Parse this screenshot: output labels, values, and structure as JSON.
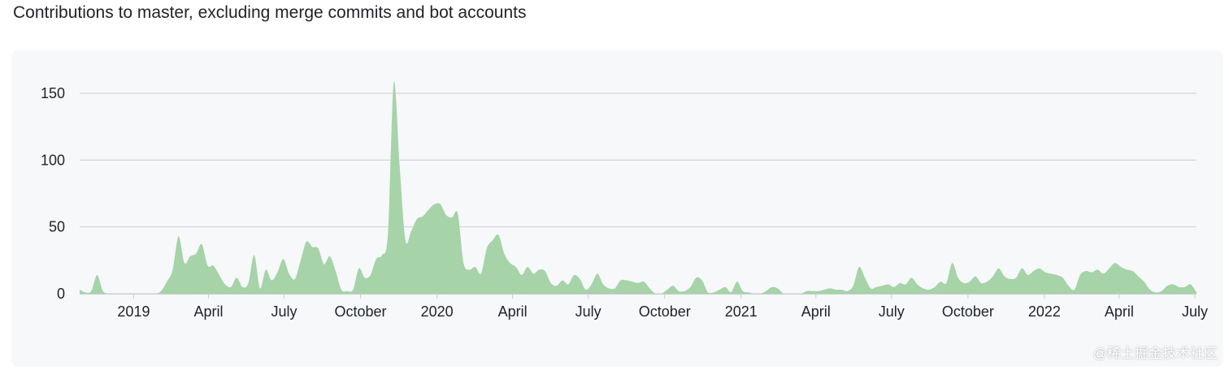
{
  "page": {
    "title": "Contributions to master, excluding merge commits and bot accounts",
    "watermark": "@稀土掘金技术社区"
  },
  "chart_data": {
    "type": "area",
    "title": "Contributions to master, excluding merge commits and bot accounts",
    "xlabel": "",
    "ylabel": "",
    "ylim": [
      0,
      170
    ],
    "yticks": [
      0,
      50,
      100,
      150
    ],
    "xlim": [
      "2018-10-28",
      "2022-07-03"
    ],
    "xticks": [
      {
        "date": "2019-01-01",
        "label": "2019"
      },
      {
        "date": "2019-04-01",
        "label": "April"
      },
      {
        "date": "2019-07-01",
        "label": "July"
      },
      {
        "date": "2019-10-01",
        "label": "October"
      },
      {
        "date": "2020-01-01",
        "label": "2020"
      },
      {
        "date": "2020-04-01",
        "label": "April"
      },
      {
        "date": "2020-07-01",
        "label": "July"
      },
      {
        "date": "2020-10-01",
        "label": "October"
      },
      {
        "date": "2021-01-01",
        "label": "2021"
      },
      {
        "date": "2021-04-01",
        "label": "April"
      },
      {
        "date": "2021-07-01",
        "label": "July"
      },
      {
        "date": "2021-10-01",
        "label": "October"
      },
      {
        "date": "2022-01-01",
        "label": "2022"
      },
      {
        "date": "2022-04-01",
        "label": "April"
      },
      {
        "date": "2022-07-01",
        "label": "July"
      }
    ],
    "grid": true,
    "fill_color": "#a6d3a8",
    "grid_color": "#c9ced4",
    "series": [
      {
        "points": [
          [
            "2018-10-28",
            3
          ],
          [
            "2018-11-04",
            1
          ],
          [
            "2018-11-11",
            2
          ],
          [
            "2018-11-18",
            14
          ],
          [
            "2018-11-25",
            2
          ],
          [
            "2018-12-02",
            0
          ],
          [
            "2018-12-09",
            0
          ],
          [
            "2018-12-16",
            0
          ],
          [
            "2018-12-23",
            0
          ],
          [
            "2018-12-30",
            0
          ],
          [
            "2019-01-06",
            0
          ],
          [
            "2019-01-13",
            0
          ],
          [
            "2019-01-20",
            0
          ],
          [
            "2019-01-27",
            0
          ],
          [
            "2019-02-03",
            2
          ],
          [
            "2019-02-10",
            9
          ],
          [
            "2019-02-17",
            18
          ],
          [
            "2019-02-24",
            43
          ],
          [
            "2019-03-03",
            23
          ],
          [
            "2019-03-10",
            28
          ],
          [
            "2019-03-17",
            30
          ],
          [
            "2019-03-24",
            37
          ],
          [
            "2019-03-31",
            21
          ],
          [
            "2019-04-07",
            21
          ],
          [
            "2019-04-14",
            14
          ],
          [
            "2019-04-21",
            7
          ],
          [
            "2019-04-28",
            5
          ],
          [
            "2019-05-05",
            12
          ],
          [
            "2019-05-12",
            5
          ],
          [
            "2019-05-19",
            8
          ],
          [
            "2019-05-26",
            29
          ],
          [
            "2019-06-02",
            4
          ],
          [
            "2019-06-09",
            18
          ],
          [
            "2019-06-16",
            10
          ],
          [
            "2019-06-23",
            16
          ],
          [
            "2019-06-30",
            26
          ],
          [
            "2019-07-07",
            15
          ],
          [
            "2019-07-14",
            11
          ],
          [
            "2019-07-21",
            25
          ],
          [
            "2019-07-28",
            39
          ],
          [
            "2019-08-04",
            35
          ],
          [
            "2019-08-11",
            34
          ],
          [
            "2019-08-18",
            22
          ],
          [
            "2019-08-25",
            28
          ],
          [
            "2019-09-01",
            17
          ],
          [
            "2019-09-08",
            3
          ],
          [
            "2019-09-15",
            2
          ],
          [
            "2019-09-22",
            3
          ],
          [
            "2019-09-29",
            19
          ],
          [
            "2019-10-06",
            12
          ],
          [
            "2019-10-13",
            14
          ],
          [
            "2019-10-20",
            26
          ],
          [
            "2019-10-27",
            29
          ],
          [
            "2019-11-03",
            45
          ],
          [
            "2019-11-10",
            158
          ],
          [
            "2019-11-17",
            96
          ],
          [
            "2019-11-24",
            40
          ],
          [
            "2019-12-01",
            47
          ],
          [
            "2019-12-08",
            56
          ],
          [
            "2019-12-15",
            58
          ],
          [
            "2019-12-22",
            63
          ],
          [
            "2019-12-29",
            67
          ],
          [
            "2020-01-05",
            67
          ],
          [
            "2020-01-12",
            59
          ],
          [
            "2020-01-19",
            57
          ],
          [
            "2020-01-26",
            60
          ],
          [
            "2020-02-02",
            23
          ],
          [
            "2020-02-09",
            18
          ],
          [
            "2020-02-16",
            20
          ],
          [
            "2020-02-23",
            15
          ],
          [
            "2020-03-01",
            34
          ],
          [
            "2020-03-08",
            40
          ],
          [
            "2020-03-15",
            44
          ],
          [
            "2020-03-22",
            30
          ],
          [
            "2020-03-29",
            23
          ],
          [
            "2020-04-05",
            20
          ],
          [
            "2020-04-12",
            14
          ],
          [
            "2020-04-19",
            20
          ],
          [
            "2020-04-26",
            15
          ],
          [
            "2020-05-03",
            18
          ],
          [
            "2020-05-10",
            17
          ],
          [
            "2020-05-17",
            8
          ],
          [
            "2020-05-24",
            6
          ],
          [
            "2020-05-31",
            10
          ],
          [
            "2020-06-07",
            7
          ],
          [
            "2020-06-14",
            14
          ],
          [
            "2020-06-21",
            11
          ],
          [
            "2020-06-28",
            3
          ],
          [
            "2020-07-05",
            7
          ],
          [
            "2020-07-12",
            15
          ],
          [
            "2020-07-19",
            7
          ],
          [
            "2020-07-26",
            4
          ],
          [
            "2020-08-02",
            4
          ],
          [
            "2020-08-09",
            10
          ],
          [
            "2020-08-16",
            10
          ],
          [
            "2020-08-23",
            9
          ],
          [
            "2020-08-30",
            8
          ],
          [
            "2020-09-06",
            9
          ],
          [
            "2020-09-13",
            4
          ],
          [
            "2020-09-20",
            0
          ],
          [
            "2020-09-27",
            0
          ],
          [
            "2020-10-04",
            3
          ],
          [
            "2020-10-11",
            6
          ],
          [
            "2020-10-18",
            2
          ],
          [
            "2020-10-25",
            2
          ],
          [
            "2020-11-01",
            5
          ],
          [
            "2020-11-08",
            12
          ],
          [
            "2020-11-15",
            10
          ],
          [
            "2020-11-22",
            1
          ],
          [
            "2020-11-29",
            1
          ],
          [
            "2020-12-06",
            3
          ],
          [
            "2020-12-13",
            5
          ],
          [
            "2020-12-20",
            1
          ],
          [
            "2020-12-27",
            9
          ],
          [
            "2021-01-03",
            2
          ],
          [
            "2021-01-10",
            1
          ],
          [
            "2021-01-17",
            0
          ],
          [
            "2021-01-24",
            0
          ],
          [
            "2021-01-31",
            2
          ],
          [
            "2021-02-07",
            5
          ],
          [
            "2021-02-14",
            4
          ],
          [
            "2021-02-21",
            0
          ],
          [
            "2021-02-28",
            0
          ],
          [
            "2021-03-07",
            0
          ],
          [
            "2021-03-14",
            0
          ],
          [
            "2021-03-21",
            2
          ],
          [
            "2021-03-28",
            2
          ],
          [
            "2021-04-04",
            2
          ],
          [
            "2021-04-11",
            3
          ],
          [
            "2021-04-18",
            4
          ],
          [
            "2021-04-25",
            3
          ],
          [
            "2021-05-02",
            3
          ],
          [
            "2021-05-09",
            2
          ],
          [
            "2021-05-16",
            6
          ],
          [
            "2021-05-23",
            20
          ],
          [
            "2021-05-30",
            12
          ],
          [
            "2021-06-06",
            4
          ],
          [
            "2021-06-13",
            5
          ],
          [
            "2021-06-20",
            6
          ],
          [
            "2021-06-27",
            7
          ],
          [
            "2021-07-04",
            5
          ],
          [
            "2021-07-11",
            8
          ],
          [
            "2021-07-18",
            7
          ],
          [
            "2021-07-25",
            12
          ],
          [
            "2021-08-01",
            7
          ],
          [
            "2021-08-08",
            4
          ],
          [
            "2021-08-15",
            3
          ],
          [
            "2021-08-22",
            5
          ],
          [
            "2021-08-29",
            9
          ],
          [
            "2021-09-05",
            8
          ],
          [
            "2021-09-12",
            23
          ],
          [
            "2021-09-19",
            12
          ],
          [
            "2021-09-26",
            8
          ],
          [
            "2021-10-03",
            9
          ],
          [
            "2021-10-10",
            13
          ],
          [
            "2021-10-17",
            8
          ],
          [
            "2021-10-24",
            9
          ],
          [
            "2021-10-31",
            13
          ],
          [
            "2021-11-07",
            19
          ],
          [
            "2021-11-14",
            13
          ],
          [
            "2021-11-21",
            11
          ],
          [
            "2021-11-28",
            12
          ],
          [
            "2021-12-05",
            19
          ],
          [
            "2021-12-12",
            14
          ],
          [
            "2021-12-19",
            17
          ],
          [
            "2021-12-26",
            19
          ],
          [
            "2022-01-02",
            16
          ],
          [
            "2022-01-09",
            15
          ],
          [
            "2022-01-16",
            14
          ],
          [
            "2022-01-23",
            12
          ],
          [
            "2022-01-30",
            6
          ],
          [
            "2022-02-06",
            3
          ],
          [
            "2022-02-13",
            14
          ],
          [
            "2022-02-20",
            17
          ],
          [
            "2022-02-27",
            16
          ],
          [
            "2022-03-06",
            18
          ],
          [
            "2022-03-13",
            15
          ],
          [
            "2022-03-20",
            19
          ],
          [
            "2022-03-27",
            23
          ],
          [
            "2022-04-03",
            20
          ],
          [
            "2022-04-10",
            18
          ],
          [
            "2022-04-17",
            17
          ],
          [
            "2022-04-24",
            13
          ],
          [
            "2022-05-01",
            9
          ],
          [
            "2022-05-08",
            3
          ],
          [
            "2022-05-15",
            1
          ],
          [
            "2022-05-22",
            2
          ],
          [
            "2022-05-29",
            6
          ],
          [
            "2022-06-05",
            7
          ],
          [
            "2022-06-12",
            5
          ],
          [
            "2022-06-19",
            5
          ],
          [
            "2022-06-26",
            7
          ],
          [
            "2022-07-03",
            1
          ]
        ]
      }
    ]
  }
}
